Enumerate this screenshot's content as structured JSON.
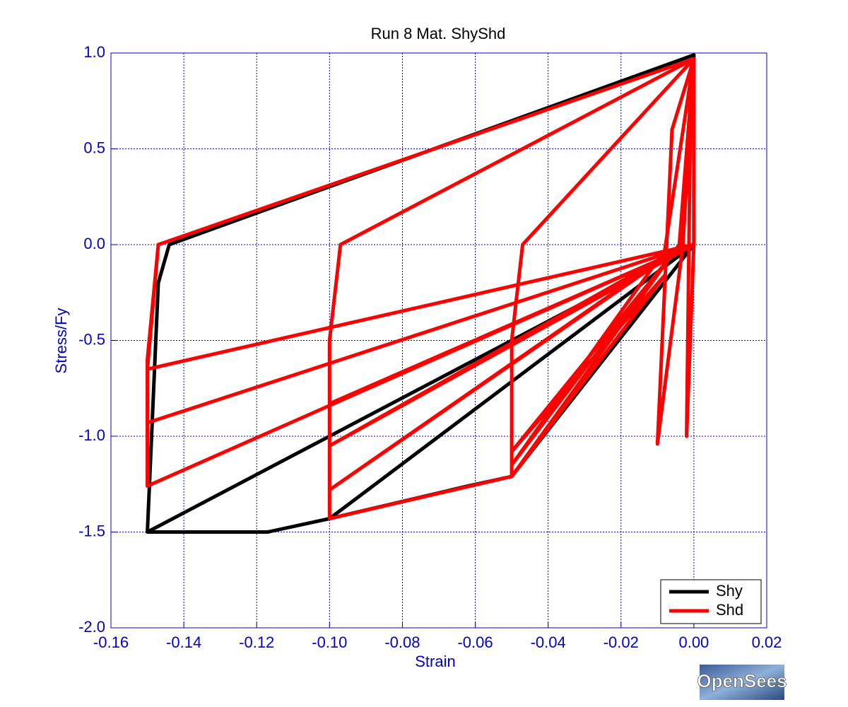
{
  "chart_data": {
    "type": "line",
    "title": "Run 8    Mat. ShyShd",
    "xlabel": "Strain",
    "ylabel": "Stress/Fy",
    "xlim": [
      -0.16,
      0.02
    ],
    "ylim": [
      -2.0,
      1.0
    ],
    "xticks": [
      -0.16,
      -0.14,
      -0.12,
      {
        "value": -0.1,
        "label": "-0.10"
      },
      -0.08,
      -0.06,
      -0.04,
      -0.02,
      {
        "value": 0,
        "label": "0.00"
      },
      0.02
    ],
    "yticks": [
      {
        "value": 1,
        "label": "1.0"
      },
      0.5,
      {
        "value": 0,
        "label": "0.0"
      },
      -0.5,
      {
        "value": -1,
        "label": "-1.0"
      },
      -1.5,
      {
        "value": -2,
        "label": "-2.0"
      }
    ],
    "grid": true,
    "legend": "lower right",
    "series": [
      {
        "name": "Shy",
        "color": "#000000",
        "x": [
          0,
          -0.05,
          -0.062,
          -0.1,
          -0.117,
          -0.15,
          -0.147,
          -0.144,
          0,
          0,
          -0.1,
          0,
          -0.15
        ],
        "values": [
          0,
          -1.21,
          -1.26,
          -1.43,
          -1.5,
          -1.5,
          -0.2,
          0,
          0.99,
          0,
          -1.43,
          0,
          -1.5
        ]
      },
      {
        "name": "Shd",
        "color": "#ff0000",
        "x": [
          0,
          -0.002,
          -0.001,
          0,
          -0.003,
          -0.01,
          -0.006,
          0,
          -0.004,
          -0.05,
          -0.05,
          -0.047,
          0,
          -0.008,
          -0.05,
          -0.008,
          -0.05,
          -0.008,
          -0.05,
          -0.1,
          -0.1,
          -0.097,
          0,
          -0.003,
          -0.1,
          -0.004,
          -0.1,
          0,
          -0.1,
          0,
          -0.15,
          -0.15,
          -0.147,
          0,
          0,
          -0.15,
          0,
          -0.15,
          -0.147,
          0,
          0
        ],
        "values": [
          0,
          -1.0,
          0.55,
          0.97,
          0,
          -1.04,
          0.6,
          0.97,
          0,
          -1.21,
          -0.5,
          0,
          0.97,
          -0.03,
          -1.15,
          -0.1,
          -1.08,
          -0.16,
          -1.21,
          -1.43,
          -0.5,
          0,
          0.97,
          0,
          -1.28,
          -0.02,
          -1.05,
          0,
          -0.83,
          0,
          -1.26,
          -0.6,
          0,
          0.97,
          0,
          -0.93,
          0,
          -0.65,
          0,
          0.97,
          0
        ]
      }
    ]
  },
  "logo": "OpenSees"
}
